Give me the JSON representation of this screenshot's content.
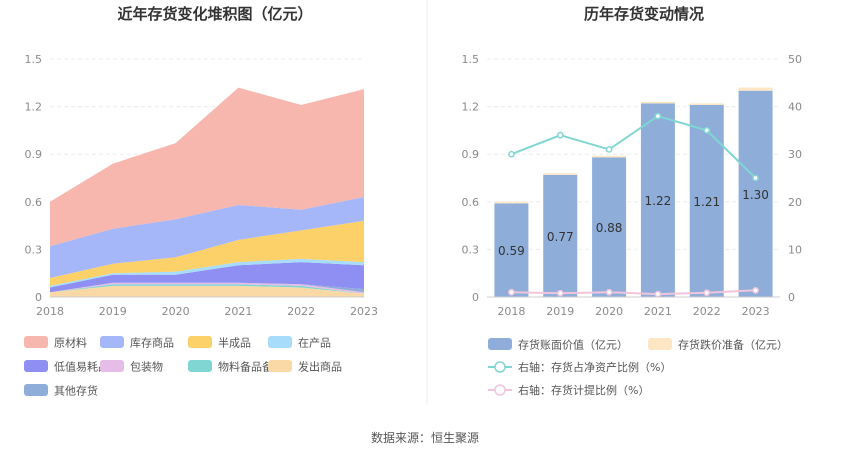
{
  "source_label": "数据来源：恒生聚源",
  "chart_data": [
    {
      "type": "area",
      "stacked": true,
      "title": "近年存货变化堆积图（亿元）",
      "x": [
        "2018",
        "2019",
        "2020",
        "2021",
        "2022",
        "2023"
      ],
      "ylim": [
        0,
        1.5
      ],
      "yticks": [
        "0",
        "0.3",
        "0.6",
        "0.9",
        "1.2",
        "1.5"
      ],
      "series": [
        {
          "name": "发出商品",
          "color": "#fbd9a6",
          "values": [
            0.03,
            0.07,
            0.07,
            0.07,
            0.06,
            0.02
          ]
        },
        {
          "name": "物料备品备件",
          "color": "#7fd6d3",
          "values": [
            0.0,
            0.01,
            0.01,
            0.01,
            0.01,
            0.0
          ]
        },
        {
          "name": "包装物",
          "color": "#e6bde6",
          "values": [
            0.0,
            0.01,
            0.01,
            0.01,
            0.01,
            0.01
          ]
        },
        {
          "name": "其他存货",
          "color": "#8eadd9",
          "values": [
            0.0,
            0.0,
            0.0,
            0.0,
            0.0,
            0.02
          ]
        },
        {
          "name": "低值易耗品",
          "color": "#8f8ef3",
          "values": [
            0.03,
            0.05,
            0.05,
            0.11,
            0.14,
            0.15
          ]
        },
        {
          "name": "在产品",
          "color": "#a7dcfa",
          "values": [
            0.01,
            0.01,
            0.02,
            0.02,
            0.02,
            0.02
          ]
        },
        {
          "name": "半成品",
          "color": "#fcd16a",
          "values": [
            0.05,
            0.06,
            0.09,
            0.14,
            0.18,
            0.26
          ]
        },
        {
          "name": "库存商品",
          "color": "#a5b7f9",
          "values": [
            0.2,
            0.22,
            0.24,
            0.22,
            0.13,
            0.15
          ]
        },
        {
          "name": "原材料",
          "color": "#f7b6ae",
          "values": [
            0.28,
            0.41,
            0.48,
            0.74,
            0.66,
            0.68
          ]
        }
      ],
      "legend": [
        "原材料",
        "库存商品",
        "半成品",
        "在产品",
        "低值易耗品",
        "包装物",
        "物料备品备件",
        "发出商品",
        "其他存货"
      ],
      "legend_position": "bottom"
    },
    {
      "type": "bar",
      "title": "历年存货变动情况",
      "x": [
        "2018",
        "2019",
        "2020",
        "2021",
        "2022",
        "2023"
      ],
      "ylim": [
        0,
        1.5
      ],
      "yticks": [
        "0",
        "0.3",
        "0.6",
        "0.9",
        "1.2",
        "1.5"
      ],
      "y2lim": [
        0,
        50
      ],
      "y2ticks": [
        "0",
        "10",
        "20",
        "30",
        "40",
        "50"
      ],
      "series": [
        {
          "name": "存货账面价值（亿元）",
          "color": "#8eadd9",
          "values": [
            0.59,
            0.77,
            0.88,
            1.22,
            1.21,
            1.3
          ],
          "labels": [
            "0.59",
            "0.77",
            "0.88",
            "1.22",
            "1.21",
            "1.30"
          ]
        },
        {
          "name": "存货跌价准备（亿元）",
          "color": "#fde6c3",
          "values": [
            0.01,
            0.01,
            0.01,
            0.01,
            0.01,
            0.02
          ]
        },
        {
          "name": "右轴：存货占净资产比例（%）",
          "color": "#7fd6d3",
          "axis": "right",
          "type": "line",
          "values": [
            30,
            34,
            31,
            38,
            35,
            25
          ]
        },
        {
          "name": "右轴：存货计提比例（%）",
          "color": "#f2c4dc",
          "axis": "right",
          "type": "line",
          "values": [
            1.0,
            0.8,
            1.0,
            0.6,
            0.9,
            1.4
          ]
        }
      ],
      "legend_position": "bottom"
    }
  ]
}
